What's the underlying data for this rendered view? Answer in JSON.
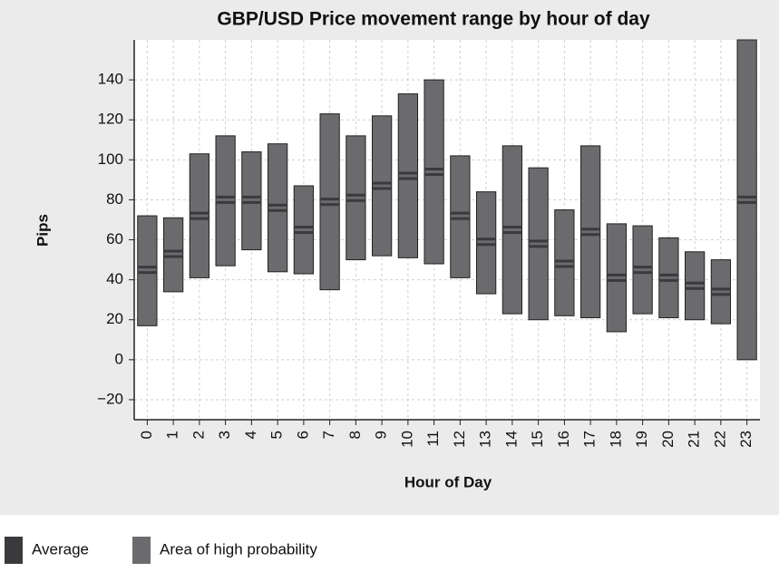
{
  "chart_data": {
    "type": "floating-bar",
    "title": "GBP/USD Price movement range by hour of day",
    "x_label": "Hour of Day",
    "y_label": "Pips",
    "categories": [
      "0",
      "1",
      "2",
      "3",
      "4",
      "5",
      "6",
      "7",
      "8",
      "9",
      "10",
      "11",
      "12",
      "13",
      "14",
      "15",
      "16",
      "17",
      "18",
      "19",
      "20",
      "21",
      "22",
      "23"
    ],
    "series": [
      {
        "name": "Average",
        "color": "#3a3a3c",
        "values": [
          45,
          53,
          72,
          80,
          80,
          76,
          65,
          79,
          81,
          87,
          92,
          94,
          72,
          59,
          65,
          58,
          48,
          64,
          41,
          45,
          41,
          37,
          34,
          80
        ]
      },
      {
        "name": "Area of high probability",
        "color": "#6b6b6e",
        "low": [
          17,
          34,
          41,
          47,
          55,
          44,
          43,
          35,
          50,
          52,
          51,
          48,
          41,
          33,
          23,
          20,
          22,
          21,
          14,
          23,
          21,
          20,
          18,
          0
        ],
        "high": [
          72,
          71,
          103,
          112,
          104,
          108,
          87,
          123,
          112,
          122,
          133,
          140,
          102,
          84,
          107,
          96,
          75,
          107,
          68,
          67,
          61,
          54,
          50,
          160
        ]
      }
    ],
    "ylim": [
      -30,
      160
    ],
    "yticks": [
      {
        "value": -20,
        "label": "−20"
      },
      0,
      20,
      40,
      60,
      80,
      100,
      120,
      140
    ],
    "grid": true
  }
}
